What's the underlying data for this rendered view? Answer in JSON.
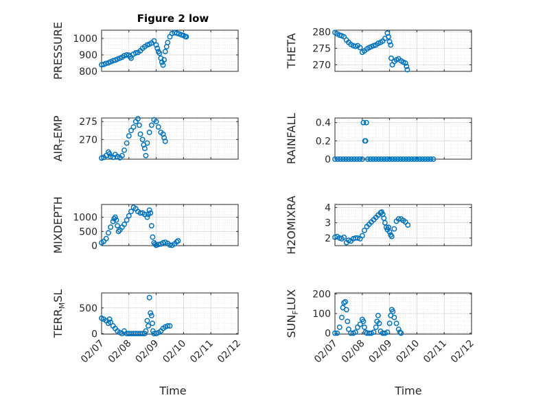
{
  "figure": {
    "title": "Figure 2 low"
  },
  "chart_data": [
    {
      "type": "scatter",
      "title": "Figure 2 low",
      "ylabel": "PRESSURE",
      "ylabel_main": "PRESSURE",
      "ylabel_sub": "",
      "ylabel_tail": "",
      "xlim": [
        "02/07",
        "02/11"
      ],
      "ylim": [
        800,
        1050
      ],
      "yticks": [
        800,
        900,
        1000
      ],
      "grid": true,
      "marker": "open-circle",
      "color": "#0072BD",
      "points": [
        [
          0.0,
          840
        ],
        [
          0.08,
          842
        ],
        [
          0.16,
          848
        ],
        [
          0.25,
          852
        ],
        [
          0.33,
          858
        ],
        [
          0.42,
          865
        ],
        [
          0.5,
          868
        ],
        [
          0.58,
          874
        ],
        [
          0.67,
          880
        ],
        [
          0.75,
          886
        ],
        [
          0.83,
          895
        ],
        [
          0.92,
          900
        ],
        [
          1.0,
          898
        ],
        [
          1.04,
          890
        ],
        [
          1.08,
          880
        ],
        [
          1.17,
          905
        ],
        [
          1.25,
          912
        ],
        [
          1.33,
          915
        ],
        [
          1.42,
          925
        ],
        [
          1.5,
          940
        ],
        [
          1.58,
          950
        ],
        [
          1.67,
          960
        ],
        [
          1.75,
          965
        ],
        [
          1.83,
          972
        ],
        [
          1.92,
          985
        ],
        [
          2.0,
          960
        ],
        [
          2.04,
          940
        ],
        [
          2.08,
          920
        ],
        [
          2.12,
          910
        ],
        [
          2.17,
          880
        ],
        [
          2.21,
          855
        ],
        [
          2.25,
          838
        ],
        [
          2.29,
          870
        ],
        [
          2.33,
          920
        ],
        [
          2.38,
          950
        ],
        [
          2.42,
          975
        ],
        [
          2.5,
          1010
        ],
        [
          2.58,
          1030
        ],
        [
          2.67,
          1035
        ],
        [
          2.75,
          1032
        ],
        [
          2.83,
          1028
        ],
        [
          2.92,
          1022
        ],
        [
          3.0,
          1018
        ],
        [
          3.06,
          1012
        ],
        [
          3.1,
          1010
        ]
      ]
    },
    {
      "type": "scatter",
      "ylabel": "THETA",
      "ylabel_main": "THETA",
      "ylabel_sub": "",
      "ylabel_tail": "",
      "xlim": [
        "02/07",
        "02/11"
      ],
      "ylim": [
        268,
        280.5
      ],
      "yticks": [
        270,
        275,
        280
      ],
      "grid": true,
      "marker": "open-circle",
      "color": "#0072BD",
      "points": [
        [
          0.0,
          279.8
        ],
        [
          0.08,
          279.4
        ],
        [
          0.17,
          279.0
        ],
        [
          0.25,
          278.8
        ],
        [
          0.33,
          278.5
        ],
        [
          0.42,
          277.5
        ],
        [
          0.5,
          276.8
        ],
        [
          0.58,
          276.2
        ],
        [
          0.67,
          275.8
        ],
        [
          0.75,
          275.6
        ],
        [
          0.83,
          275.8
        ],
        [
          0.92,
          275.2
        ],
        [
          1.0,
          273.8
        ],
        [
          1.08,
          274.2
        ],
        [
          1.17,
          274.8
        ],
        [
          1.25,
          275.2
        ],
        [
          1.33,
          275.5
        ],
        [
          1.42,
          275.8
        ],
        [
          1.5,
          276.0
        ],
        [
          1.58,
          276.5
        ],
        [
          1.67,
          276.8
        ],
        [
          1.75,
          277.2
        ],
        [
          1.83,
          278.0
        ],
        [
          1.92,
          279.6
        ],
        [
          1.96,
          278.5
        ],
        [
          2.0,
          277.0
        ],
        [
          2.04,
          276.0
        ],
        [
          2.06,
          272.0
        ],
        [
          2.1,
          270.0
        ],
        [
          2.17,
          271.0
        ],
        [
          2.25,
          271.5
        ],
        [
          2.33,
          271.8
        ],
        [
          2.42,
          271.2
        ],
        [
          2.5,
          270.8
        ],
        [
          2.58,
          270.5
        ],
        [
          2.62,
          269.5
        ],
        [
          2.65,
          268.5
        ]
      ]
    },
    {
      "type": "scatter",
      "ylabel": "AIR_TEMP",
      "ylabel_main": "AIR",
      "ylabel_sub": "T",
      "ylabel_tail": "EMP",
      "xlim": [
        "02/07",
        "02/11"
      ],
      "ylim": [
        264.5,
        276
      ],
      "yticks": [
        270,
        275
      ],
      "grid": true,
      "marker": "open-circle",
      "color": "#0072BD",
      "points": [
        [
          0.0,
          264.8
        ],
        [
          0.08,
          265.0
        ],
        [
          0.17,
          265.5
        ],
        [
          0.25,
          266.5
        ],
        [
          0.29,
          266.0
        ],
        [
          0.33,
          265.2
        ],
        [
          0.42,
          265.0
        ],
        [
          0.5,
          265.8
        ],
        [
          0.58,
          265.2
        ],
        [
          0.67,
          264.9
        ],
        [
          0.75,
          265.5
        ],
        [
          0.83,
          267.0
        ],
        [
          0.92,
          269.0
        ],
        [
          1.0,
          271.0
        ],
        [
          1.08,
          272.5
        ],
        [
          1.17,
          273.5
        ],
        [
          1.25,
          275.0
        ],
        [
          1.33,
          275.8
        ],
        [
          1.38,
          274.0
        ],
        [
          1.42,
          271.5
        ],
        [
          1.5,
          270.0
        ],
        [
          1.54,
          268.5
        ],
        [
          1.58,
          267.5
        ],
        [
          1.62,
          265.5
        ],
        [
          1.67,
          269.0
        ],
        [
          1.75,
          272.0
        ],
        [
          1.83,
          274.0
        ],
        [
          1.92,
          275.5
        ],
        [
          2.0,
          275.0
        ],
        [
          2.08,
          273.5
        ],
        [
          2.17,
          272.0
        ],
        [
          2.25,
          271.5
        ],
        [
          2.29,
          270.5
        ],
        [
          2.33,
          269.5
        ]
      ]
    },
    {
      "type": "scatter",
      "ylabel": "RAINFALL",
      "ylabel_main": "RAINFALL",
      "ylabel_sub": "",
      "ylabel_tail": "",
      "xlim": [
        "02/07",
        "02/11"
      ],
      "ylim": [
        0,
        0.45
      ],
      "yticks": [
        0,
        0.2,
        0.4
      ],
      "grid": true,
      "marker": "open-circle",
      "color": "#0072BD",
      "points": [
        [
          0.0,
          0
        ],
        [
          0.1,
          0
        ],
        [
          0.2,
          0
        ],
        [
          0.3,
          0
        ],
        [
          0.4,
          0
        ],
        [
          0.5,
          0
        ],
        [
          0.6,
          0
        ],
        [
          0.7,
          0
        ],
        [
          0.8,
          0
        ],
        [
          0.9,
          0
        ],
        [
          1.0,
          0
        ],
        [
          1.04,
          0.4
        ],
        [
          1.1,
          0.2
        ],
        [
          1.12,
          0.2
        ],
        [
          1.15,
          0.4
        ],
        [
          1.2,
          0
        ],
        [
          1.3,
          0
        ],
        [
          1.4,
          0
        ],
        [
          1.5,
          0
        ],
        [
          1.6,
          0
        ],
        [
          1.7,
          0
        ],
        [
          1.8,
          0
        ],
        [
          1.9,
          0
        ],
        [
          2.0,
          0
        ],
        [
          2.1,
          0
        ],
        [
          2.2,
          0
        ],
        [
          2.3,
          0
        ],
        [
          2.4,
          0
        ],
        [
          2.5,
          0
        ],
        [
          2.6,
          0
        ],
        [
          2.7,
          0
        ],
        [
          2.8,
          0
        ],
        [
          2.9,
          0
        ],
        [
          3.0,
          0
        ],
        [
          3.1,
          0
        ],
        [
          3.2,
          0
        ],
        [
          3.3,
          0
        ],
        [
          3.4,
          0
        ],
        [
          3.5,
          0
        ],
        [
          3.6,
          0
        ]
      ]
    },
    {
      "type": "scatter",
      "ylabel": "MIXDEPTH",
      "ylabel_main": "MIXDEPTH",
      "ylabel_sub": "",
      "ylabel_tail": "",
      "xlim": [
        "02/07",
        "02/11"
      ],
      "ylim": [
        0,
        1450
      ],
      "yticks": [
        0,
        500,
        1000
      ],
      "grid": true,
      "marker": "open-circle",
      "color": "#0072BD",
      "points": [
        [
          0.0,
          100
        ],
        [
          0.08,
          150
        ],
        [
          0.17,
          250
        ],
        [
          0.25,
          450
        ],
        [
          0.33,
          650
        ],
        [
          0.42,
          850
        ],
        [
          0.46,
          950
        ],
        [
          0.5,
          1000
        ],
        [
          0.54,
          900
        ],
        [
          0.58,
          700
        ],
        [
          0.62,
          500
        ],
        [
          0.67,
          550
        ],
        [
          0.75,
          650
        ],
        [
          0.83,
          750
        ],
        [
          0.92,
          900
        ],
        [
          1.0,
          1050
        ],
        [
          1.08,
          1200
        ],
        [
          1.17,
          1350
        ],
        [
          1.25,
          1300
        ],
        [
          1.33,
          1200
        ],
        [
          1.42,
          1150
        ],
        [
          1.5,
          1150
        ],
        [
          1.58,
          1100
        ],
        [
          1.67,
          1000
        ],
        [
          1.71,
          1100
        ],
        [
          1.75,
          1250
        ],
        [
          1.79,
          1150
        ],
        [
          1.83,
          700
        ],
        [
          1.87,
          300
        ],
        [
          1.92,
          100
        ],
        [
          1.96,
          50
        ],
        [
          2.0,
          10
        ],
        [
          2.08,
          40
        ],
        [
          2.17,
          60
        ],
        [
          2.25,
          100
        ],
        [
          2.33,
          120
        ],
        [
          2.42,
          80
        ],
        [
          2.5,
          20
        ],
        [
          2.58,
          10
        ],
        [
          2.67,
          60
        ],
        [
          2.75,
          130
        ],
        [
          2.8,
          170
        ]
      ]
    },
    {
      "type": "scatter",
      "ylabel": "H2OMIXRA",
      "ylabel_main": "H2OMIXRA",
      "ylabel_sub": "",
      "ylabel_tail": "",
      "xlim": [
        "02/07",
        "02/11"
      ],
      "ylim": [
        1.5,
        4.2
      ],
      "yticks": [
        2,
        3,
        4
      ],
      "grid": true,
      "marker": "open-circle",
      "color": "#0072BD",
      "points": [
        [
          0.0,
          2.05
        ],
        [
          0.08,
          2.1
        ],
        [
          0.17,
          2.0
        ],
        [
          0.25,
          1.95
        ],
        [
          0.33,
          2.05
        ],
        [
          0.42,
          1.7
        ],
        [
          0.5,
          1.85
        ],
        [
          0.58,
          1.8
        ],
        [
          0.67,
          1.95
        ],
        [
          0.75,
          2.0
        ],
        [
          0.83,
          2.0
        ],
        [
          0.92,
          1.95
        ],
        [
          1.0,
          2.15
        ],
        [
          1.08,
          2.5
        ],
        [
          1.17,
          2.75
        ],
        [
          1.25,
          2.9
        ],
        [
          1.33,
          3.05
        ],
        [
          1.42,
          3.2
        ],
        [
          1.5,
          3.35
        ],
        [
          1.58,
          3.5
        ],
        [
          1.67,
          3.65
        ],
        [
          1.71,
          3.7
        ],
        [
          1.75,
          3.55
        ],
        [
          1.79,
          3.3
        ],
        [
          1.83,
          3.0
        ],
        [
          1.88,
          2.7
        ],
        [
          1.92,
          2.55
        ],
        [
          1.96,
          2.7
        ],
        [
          2.0,
          2.4
        ],
        [
          2.04,
          2.2
        ],
        [
          2.08,
          2.1
        ],
        [
          2.17,
          2.6
        ],
        [
          2.25,
          3.1
        ],
        [
          2.33,
          3.25
        ],
        [
          2.42,
          3.25
        ],
        [
          2.5,
          3.15
        ],
        [
          2.58,
          3.05
        ],
        [
          2.67,
          2.85
        ]
      ]
    },
    {
      "type": "scatter",
      "ylabel": "TERR_MSL",
      "ylabel_main": "TERR",
      "ylabel_sub": "M",
      "ylabel_tail": "SL",
      "xlim": [
        "02/07",
        "02/11"
      ],
      "ylim": [
        -10,
        790
      ],
      "yticks": [
        0,
        500
      ],
      "grid": true,
      "marker": "open-circle",
      "color": "#0072BD",
      "points": [
        [
          0.0,
          300
        ],
        [
          0.08,
          280
        ],
        [
          0.17,
          250
        ],
        [
          0.25,
          200
        ],
        [
          0.29,
          280
        ],
        [
          0.33,
          220
        ],
        [
          0.42,
          150
        ],
        [
          0.5,
          100
        ],
        [
          0.58,
          50
        ],
        [
          0.67,
          20
        ],
        [
          0.75,
          0
        ],
        [
          0.83,
          50
        ],
        [
          0.92,
          0
        ],
        [
          1.0,
          0
        ],
        [
          1.08,
          0
        ],
        [
          1.17,
          0
        ],
        [
          1.25,
          0
        ],
        [
          1.33,
          0
        ],
        [
          1.42,
          0
        ],
        [
          1.5,
          0
        ],
        [
          1.58,
          0
        ],
        [
          1.62,
          50
        ],
        [
          1.67,
          250
        ],
        [
          1.71,
          150
        ],
        [
          1.75,
          700
        ],
        [
          1.79,
          400
        ],
        [
          1.83,
          350
        ],
        [
          1.86,
          200
        ],
        [
          1.88,
          50
        ],
        [
          1.92,
          0
        ],
        [
          2.0,
          0
        ],
        [
          2.08,
          20
        ],
        [
          2.17,
          50
        ],
        [
          2.25,
          100
        ],
        [
          2.33,
          130
        ],
        [
          2.42,
          150
        ],
        [
          2.5,
          150
        ]
      ]
    },
    {
      "type": "scatter",
      "ylabel": "SUN_FLUX",
      "ylabel_main": "SUN",
      "ylabel_sub": "F",
      "ylabel_tail": "LUX",
      "xlim": [
        "02/07",
        "02/12"
      ],
      "ylim": [
        -5,
        205
      ],
      "yticks": [
        0,
        100,
        200
      ],
      "grid": true,
      "marker": "open-circle",
      "color": "#0072BD",
      "points": [
        [
          0.0,
          0
        ],
        [
          0.08,
          0
        ],
        [
          0.17,
          30
        ],
        [
          0.25,
          80
        ],
        [
          0.29,
          130
        ],
        [
          0.33,
          155
        ],
        [
          0.38,
          160
        ],
        [
          0.42,
          120
        ],
        [
          0.46,
          60
        ],
        [
          0.5,
          20
        ],
        [
          0.58,
          0
        ],
        [
          0.67,
          0
        ],
        [
          0.75,
          5
        ],
        [
          0.83,
          30
        ],
        [
          0.92,
          45
        ],
        [
          1.0,
          70
        ],
        [
          1.04,
          60
        ],
        [
          1.08,
          30
        ],
        [
          1.12,
          5
        ],
        [
          1.17,
          0
        ],
        [
          1.25,
          0
        ],
        [
          1.33,
          0
        ],
        [
          1.42,
          5
        ],
        [
          1.5,
          30
        ],
        [
          1.54,
          60
        ],
        [
          1.58,
          90
        ],
        [
          1.62,
          50
        ],
        [
          1.67,
          10
        ],
        [
          1.75,
          0
        ],
        [
          1.83,
          0
        ],
        [
          1.92,
          5
        ],
        [
          2.0,
          50
        ],
        [
          2.04,
          90
        ],
        [
          2.08,
          120
        ],
        [
          2.12,
          110
        ],
        [
          2.17,
          80
        ],
        [
          2.25,
          50
        ],
        [
          2.33,
          20
        ],
        [
          2.38,
          5
        ],
        [
          2.42,
          0
        ]
      ]
    }
  ],
  "x_axis": {
    "ticks": [
      "02/07",
      "02/08",
      "02/09",
      "02/10",
      "02/11",
      "02/12"
    ],
    "label": "Time"
  }
}
